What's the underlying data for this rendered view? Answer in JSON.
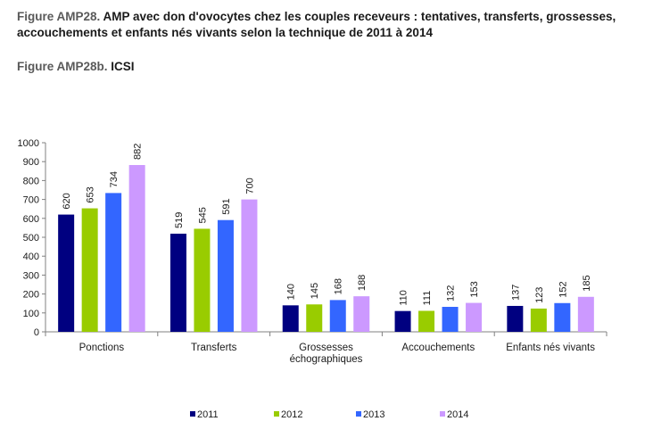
{
  "title": {
    "prefix": "Figure AMP28.",
    "text": "AMP avec don d'ovocytes chez les couples receveurs : tentatives, transferts, grossesses, accouchements et enfants nés vivants selon la technique de 2011 à 2014"
  },
  "subtitle": {
    "prefix": "Figure AMP28b.",
    "text": "ICSI"
  },
  "chart_data": {
    "type": "bar",
    "title": "",
    "xlabel": "",
    "ylabel": "",
    "ylim": [
      0,
      1000
    ],
    "yticks": [
      0,
      100,
      200,
      300,
      400,
      500,
      600,
      700,
      800,
      900,
      1000
    ],
    "grid": false,
    "legend_position": "bottom",
    "categories": [
      [
        "Ponctions"
      ],
      [
        "Transferts"
      ],
      [
        "Grossesses",
        "échographiques"
      ],
      [
        "Accouchements"
      ],
      [
        "Enfants nés vivants"
      ]
    ],
    "series": [
      {
        "name": "2011",
        "color": "#000080",
        "values": [
          620,
          519,
          140,
          110,
          137
        ]
      },
      {
        "name": "2012",
        "color": "#99cc00",
        "values": [
          653,
          545,
          145,
          111,
          123
        ]
      },
      {
        "name": "2013",
        "color": "#3366ff",
        "values": [
          734,
          591,
          168,
          132,
          152
        ]
      },
      {
        "name": "2014",
        "color": "#cc99ff",
        "values": [
          882,
          700,
          188,
          153,
          185
        ]
      }
    ]
  }
}
